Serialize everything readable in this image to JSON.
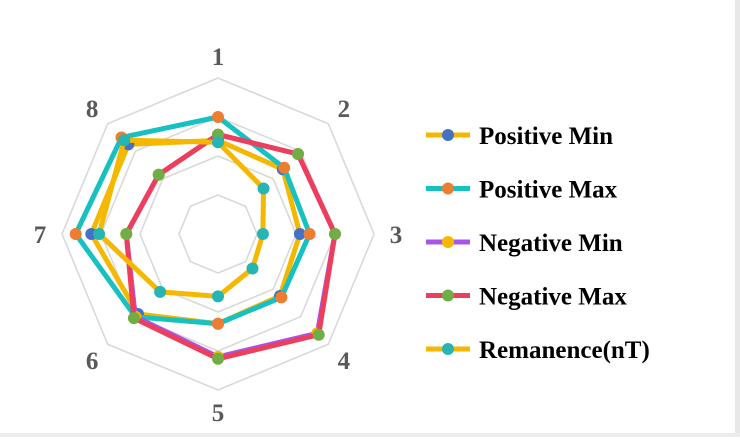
{
  "chart_data": {
    "type": "radar",
    "title": "",
    "categories": [
      "1",
      "2",
      "3",
      "4",
      "5",
      "6",
      "7",
      "8"
    ],
    "rmax": 4,
    "grid": true,
    "legend_position": "right",
    "series": [
      {
        "name": "Positive Min",
        "color": "#f5b800",
        "marker": "#4472c4",
        "values": [
          2.4,
          2.35,
          2.1,
          2.25,
          2.3,
          2.9,
          3.25,
          3.25
        ]
      },
      {
        "name": "Positive Max",
        "color": "#17c1c1",
        "marker": "#ed7d31",
        "values": [
          3.0,
          2.4,
          2.35,
          2.3,
          2.3,
          3.0,
          3.65,
          3.5
        ]
      },
      {
        "name": "Negative Min",
        "color": "#a855e6",
        "marker": "#f5b800",
        "values": [
          2.55,
          2.9,
          3.0,
          3.6,
          3.15,
          3.0,
          2.35,
          2.15
        ]
      },
      {
        "name": "Negative Max",
        "color": "#ed3f5b",
        "marker": "#70ad47",
        "values": [
          2.55,
          2.9,
          3.0,
          3.65,
          3.2,
          3.05,
          2.35,
          2.15
        ]
      },
      {
        "name": "Remanence(nT)",
        "color": "#f5b800",
        "marker": "#26b5b5",
        "values": [
          2.35,
          1.65,
          1.15,
          1.25,
          1.6,
          2.1,
          3.05,
          3.4
        ]
      }
    ]
  }
}
